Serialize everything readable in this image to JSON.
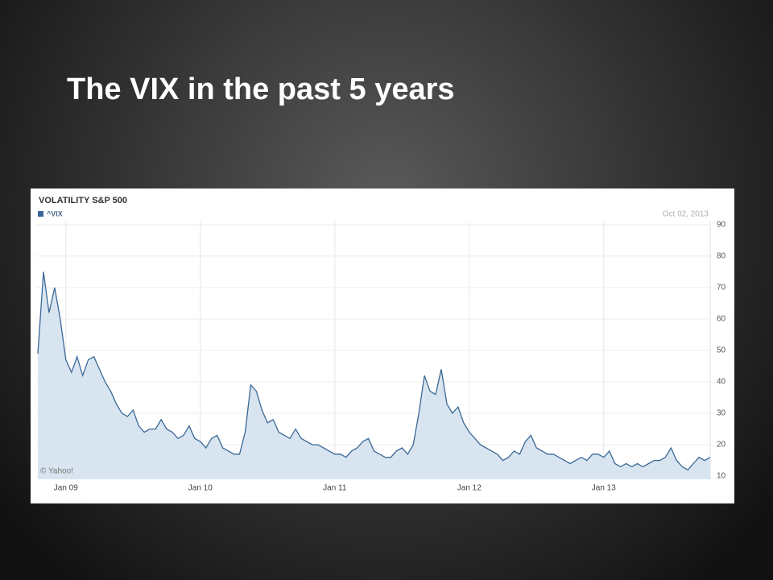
{
  "title": "The VIX in the past 5 years",
  "chart_data": {
    "type": "area",
    "title": "VOLATILITY S&P 500",
    "date_label": "Oct 02, 2013",
    "source": "© Yahoo!",
    "categories": [
      null,
      null,
      null,
      null,
      null,
      "Jan 09",
      null,
      null,
      null,
      null,
      null,
      null,
      null,
      null,
      null,
      null,
      null,
      null,
      null,
      null,
      null,
      null,
      null,
      null,
      null,
      null,
      null,
      null,
      null,
      "Jan 10",
      null,
      null,
      null,
      null,
      null,
      null,
      null,
      null,
      null,
      null,
      null,
      null,
      null,
      null,
      null,
      null,
      null,
      null,
      null,
      null,
      null,
      null,
      null,
      "Jan 11",
      null,
      null,
      null,
      null,
      null,
      null,
      null,
      null,
      null,
      null,
      null,
      null,
      null,
      null,
      null,
      null,
      null,
      null,
      null,
      null,
      null,
      null,
      null,
      "Jan 12",
      null,
      null,
      null,
      null,
      null,
      null,
      null,
      null,
      null,
      null,
      null,
      null,
      null,
      null,
      null,
      null,
      null,
      null,
      null,
      null,
      null,
      null,
      null,
      "Jan 13",
      null,
      null,
      null,
      null,
      null,
      null,
      null,
      null,
      null,
      null,
      null,
      null,
      null,
      null,
      null,
      null,
      null,
      null,
      null
    ],
    "series": [
      {
        "name": "^VIX",
        "color": "#3a6896",
        "fill": "#d8e5f1",
        "values": [
          49,
          75,
          62,
          70,
          60,
          47,
          43,
          48,
          42,
          47,
          48,
          44,
          40,
          37,
          33,
          30,
          29,
          31,
          26,
          24,
          25,
          25,
          28,
          25,
          24,
          22,
          23,
          26,
          22,
          21,
          19,
          22,
          23,
          19,
          18,
          17,
          17,
          24,
          39,
          37,
          31,
          27,
          28,
          24,
          23,
          22,
          25,
          22,
          21,
          20,
          20,
          19,
          18,
          17,
          17,
          16,
          18,
          19,
          21,
          22,
          18,
          17,
          16,
          16,
          18,
          19,
          17,
          20,
          30,
          42,
          37,
          36,
          44,
          33,
          30,
          32,
          27,
          24,
          22,
          20,
          19,
          18,
          17,
          15,
          16,
          18,
          17,
          21,
          23,
          19,
          18,
          17,
          17,
          16,
          15,
          14,
          15,
          16,
          15,
          17,
          17,
          16,
          18,
          14,
          13,
          14,
          13,
          14,
          13,
          14,
          15,
          15,
          16,
          19,
          15,
          13,
          12,
          14,
          16,
          15,
          16
        ]
      }
    ],
    "ylim": [
      9,
      91
    ],
    "yticks": [
      10,
      20,
      30,
      40,
      50,
      60,
      70,
      80,
      90
    ],
    "grid": true,
    "y_axis_side": "right"
  }
}
